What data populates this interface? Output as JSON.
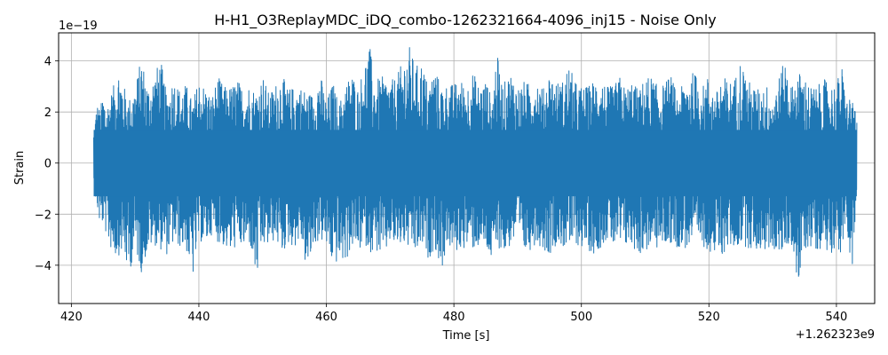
{
  "chart_data": {
    "type": "line",
    "title": "H-H1_O3ReplayMDC_iDQ_combo-1262321664-4096_inj15 - Noise Only",
    "xlabel": "Time [s]",
    "ylabel": "Strain",
    "x_offset_label": "+1.262323e9",
    "y_scale_label": "1e−19",
    "xlim": [
      418,
      546
    ],
    "ylim": [
      -5.5,
      5.1
    ],
    "x_ticks": [
      420,
      440,
      460,
      480,
      500,
      520,
      540
    ],
    "x_tick_labels": [
      "420",
      "440",
      "460",
      "480",
      "500",
      "520",
      "540"
    ],
    "y_ticks": [
      -4,
      -2,
      0,
      2,
      4
    ],
    "y_tick_labels": [
      "−4",
      "−2",
      "0",
      "2",
      "4"
    ],
    "grid": true,
    "series": [
      {
        "color": "#1f77b4",
        "x_range": [
          423.5,
          543.2
        ],
        "envelope_max": [
          [
            423.5,
            1.3
          ],
          [
            424,
            2.4
          ],
          [
            424.5,
            2.1
          ],
          [
            425,
            2.8
          ],
          [
            425.5,
            2.2
          ],
          [
            426,
            2.6
          ],
          [
            427,
            3.3
          ],
          [
            427.5,
            3.8
          ],
          [
            428,
            3.2
          ],
          [
            429,
            2.5
          ],
          [
            430,
            3.0
          ],
          [
            431,
            4.2
          ],
          [
            432,
            3.0
          ],
          [
            433,
            3.5
          ],
          [
            434,
            4.1
          ],
          [
            435,
            2.6
          ],
          [
            436,
            3.4
          ],
          [
            437,
            2.9
          ],
          [
            438,
            3.1
          ],
          [
            439,
            2.4
          ],
          [
            440,
            3.3
          ],
          [
            441,
            3.0
          ],
          [
            442,
            2.6
          ],
          [
            443,
            3.4
          ],
          [
            444,
            3.0
          ],
          [
            445,
            3.0
          ],
          [
            446,
            3.3
          ],
          [
            447,
            2.9
          ],
          [
            448,
            3.1
          ],
          [
            449,
            2.8
          ],
          [
            450,
            3.5
          ],
          [
            451,
            2.7
          ],
          [
            452,
            3.1
          ],
          [
            453,
            3.5
          ],
          [
            454,
            2.9
          ],
          [
            455,
            3.0
          ],
          [
            456,
            3.0
          ],
          [
            457,
            2.8
          ],
          [
            458,
            2.7
          ],
          [
            459,
            3.6
          ],
          [
            460,
            2.4
          ],
          [
            461,
            3.2
          ],
          [
            462,
            2.3
          ],
          [
            463,
            3.1
          ],
          [
            464,
            3.6
          ],
          [
            465,
            2.9
          ],
          [
            466,
            4.0
          ],
          [
            466.8,
            4.6
          ],
          [
            467.5,
            3.3
          ],
          [
            468,
            3.3
          ],
          [
            469,
            3.4
          ],
          [
            470,
            3.2
          ],
          [
            471,
            3.4
          ],
          [
            472,
            4.0
          ],
          [
            473,
            4.6
          ],
          [
            474,
            3.8
          ],
          [
            475,
            4.0
          ],
          [
            476,
            3.0
          ],
          [
            477,
            3.8
          ],
          [
            478,
            3.0
          ],
          [
            479,
            3.1
          ],
          [
            480,
            3.1
          ],
          [
            481,
            3.3
          ],
          [
            482,
            3.0
          ],
          [
            483,
            3.6
          ],
          [
            484,
            3.0
          ],
          [
            485,
            3.3
          ],
          [
            486,
            2.5
          ],
          [
            486.7,
            4.4
          ],
          [
            487.5,
            3.2
          ],
          [
            488,
            3.2
          ],
          [
            489,
            3.6
          ],
          [
            490,
            3.0
          ],
          [
            491,
            3.2
          ],
          [
            492,
            3.1
          ],
          [
            493,
            3.4
          ],
          [
            494,
            2.9
          ],
          [
            495,
            3.6
          ],
          [
            496,
            3.2
          ],
          [
            497,
            3.2
          ],
          [
            498,
            3.9
          ],
          [
            499,
            3.2
          ],
          [
            500,
            3.0
          ],
          [
            501,
            3.0
          ],
          [
            502,
            3.3
          ],
          [
            503,
            3.4
          ],
          [
            504,
            3.0
          ],
          [
            505,
            3.0
          ],
          [
            506,
            3.4
          ],
          [
            507,
            2.9
          ],
          [
            508,
            3.3
          ],
          [
            509,
            2.8
          ],
          [
            510,
            3.4
          ],
          [
            511,
            3.4
          ],
          [
            512,
            3.0
          ],
          [
            513,
            3.1
          ],
          [
            514,
            3.5
          ],
          [
            515,
            2.7
          ],
          [
            516,
            3.1
          ],
          [
            517,
            3.6
          ],
          [
            518,
            3.5
          ],
          [
            519,
            3.0
          ],
          [
            520,
            3.5
          ],
          [
            521,
            2.6
          ],
          [
            522,
            3.5
          ],
          [
            523,
            3.2
          ],
          [
            524,
            3.3
          ],
          [
            525,
            4.1
          ],
          [
            526,
            3.3
          ],
          [
            527,
            3.0
          ],
          [
            528,
            2.9
          ],
          [
            529,
            3.1
          ],
          [
            530,
            2.6
          ],
          [
            531,
            3.4
          ],
          [
            532,
            4.1
          ],
          [
            533,
            3.0
          ],
          [
            534,
            3.6
          ],
          [
            535,
            3.4
          ],
          [
            536,
            3.0
          ],
          [
            537,
            3.0
          ],
          [
            538,
            3.3
          ],
          [
            539,
            3.1
          ],
          [
            540,
            3.1
          ],
          [
            540.8,
            3.9
          ],
          [
            541.5,
            2.5
          ],
          [
            542.5,
            2.7
          ],
          [
            543.2,
            1.6
          ]
        ],
        "envelope_min": [
          [
            423.5,
            -1.1
          ],
          [
            424,
            -1.7
          ],
          [
            424.5,
            -2.5
          ],
          [
            425,
            -2.4
          ],
          [
            426,
            -3.3
          ],
          [
            427,
            -3.7
          ],
          [
            428,
            -3.5
          ],
          [
            429,
            -4.4
          ],
          [
            430,
            -3.4
          ],
          [
            431,
            -4.3
          ],
          [
            432,
            -3.4
          ],
          [
            433,
            -3.2
          ],
          [
            434,
            -3.4
          ],
          [
            435,
            -3.6
          ],
          [
            436,
            -3.2
          ],
          [
            437,
            -3.3
          ],
          [
            438,
            -3.4
          ],
          [
            439,
            -4.6
          ],
          [
            440,
            -3.0
          ],
          [
            441,
            -3.3
          ],
          [
            442,
            -2.8
          ],
          [
            443,
            -3.1
          ],
          [
            444,
            -3.3
          ],
          [
            445,
            -3.6
          ],
          [
            446,
            -3.2
          ],
          [
            447,
            -3.4
          ],
          [
            448,
            -3.2
          ],
          [
            449,
            -4.7
          ],
          [
            450,
            -3.3
          ],
          [
            451,
            -3.3
          ],
          [
            452,
            -3.0
          ],
          [
            453,
            -3.6
          ],
          [
            454,
            -3.2
          ],
          [
            455,
            -3.3
          ],
          [
            456,
            -3.0
          ],
          [
            457,
            -4.4
          ],
          [
            458,
            -3.3
          ],
          [
            459,
            -3.0
          ],
          [
            460,
            -3.3
          ],
          [
            461,
            -4.0
          ],
          [
            462,
            -3.9
          ],
          [
            463,
            -3.9
          ],
          [
            464,
            -3.3
          ],
          [
            465,
            -3.5
          ],
          [
            466,
            -3.2
          ],
          [
            467,
            -3.5
          ],
          [
            468,
            -3.5
          ],
          [
            469,
            -3.8
          ],
          [
            470,
            -3.1
          ],
          [
            471,
            -3.4
          ],
          [
            472,
            -3.2
          ],
          [
            473,
            -3.4
          ],
          [
            474,
            -3.6
          ],
          [
            475,
            -3.3
          ],
          [
            476,
            -3.8
          ],
          [
            477,
            -3.3
          ],
          [
            478,
            -4.3
          ],
          [
            479,
            -3.2
          ],
          [
            480,
            -3.6
          ],
          [
            481,
            -3.4
          ],
          [
            482,
            -3.3
          ],
          [
            483,
            -3.4
          ],
          [
            484,
            -3.3
          ],
          [
            485,
            -3.4
          ],
          [
            486,
            -4.0
          ],
          [
            487,
            -3.3
          ],
          [
            488,
            -3.6
          ],
          [
            489,
            -3.2
          ],
          [
            490,
            -3.0
          ],
          [
            491,
            -3.6
          ],
          [
            492,
            -3.4
          ],
          [
            493,
            -3.1
          ],
          [
            494,
            -3.4
          ],
          [
            495,
            -3.6
          ],
          [
            496,
            -3.2
          ],
          [
            497,
            -3.3
          ],
          [
            498,
            -3.4
          ],
          [
            499,
            -3.2
          ],
          [
            500,
            -3.3
          ],
          [
            501,
            -3.4
          ],
          [
            502,
            -3.6
          ],
          [
            503,
            -3.3
          ],
          [
            504,
            -3.0
          ],
          [
            505,
            -3.3
          ],
          [
            506,
            -3.4
          ],
          [
            507,
            -3.3
          ],
          [
            508,
            -3.3
          ],
          [
            509,
            -3.6
          ],
          [
            510,
            -3.5
          ],
          [
            511,
            -3.3
          ],
          [
            512,
            -3.4
          ],
          [
            513,
            -3.2
          ],
          [
            514,
            -3.2
          ],
          [
            515,
            -3.3
          ],
          [
            516,
            -3.4
          ],
          [
            517,
            -3.3
          ],
          [
            518,
            -3.2
          ],
          [
            519,
            -3.3
          ],
          [
            520,
            -3.4
          ],
          [
            521,
            -3.7
          ],
          [
            522,
            -3.7
          ],
          [
            523,
            -3.3
          ],
          [
            524,
            -3.4
          ],
          [
            525,
            -3.2
          ],
          [
            526,
            -3.3
          ],
          [
            527,
            -3.5
          ],
          [
            528,
            -3.4
          ],
          [
            529,
            -3.5
          ],
          [
            530,
            -3.3
          ],
          [
            531,
            -3.8
          ],
          [
            532,
            -3.3
          ],
          [
            533,
            -3.2
          ],
          [
            534,
            -5.0
          ],
          [
            535,
            -3.4
          ],
          [
            536,
            -3.3
          ],
          [
            537,
            -3.4
          ],
          [
            538,
            -3.3
          ],
          [
            539,
            -3.6
          ],
          [
            540,
            -3.2
          ],
          [
            540.7,
            -3.7
          ],
          [
            541.5,
            -2.6
          ],
          [
            542.5,
            -4.1
          ],
          [
            543.2,
            -1.5
          ]
        ]
      }
    ]
  }
}
